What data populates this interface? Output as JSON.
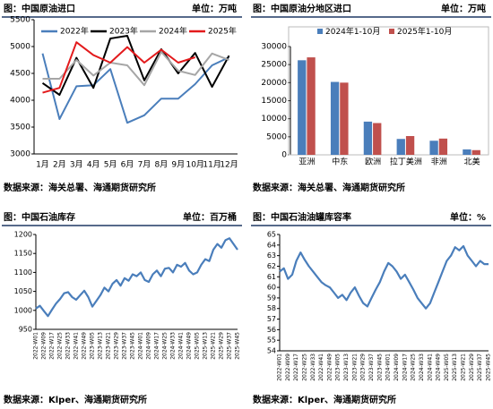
{
  "chart_data": [
    {
      "type": "line",
      "title": "图：中国原油进口",
      "unit": "单位：万吨",
      "source": "数据来源：海关总署、海通期货研究所",
      "categories": [
        "1月",
        "2月",
        "3月",
        "4月",
        "5月",
        "6月",
        "7月",
        "8月",
        "9月",
        "10月",
        "11月",
        "12月"
      ],
      "ylim": [
        3000,
        5500
      ],
      "yticks": [
        3000,
        3500,
        4000,
        4500,
        5000,
        5500
      ],
      "series": [
        {
          "name": "2022年",
          "color": "#4a7ebb",
          "values": [
            4870,
            3650,
            4260,
            4280,
            4580,
            3580,
            3720,
            4030,
            4030,
            4300,
            4650,
            4800
          ]
        },
        {
          "name": "2023年",
          "color": "#000000",
          "values": [
            4320,
            4100,
            4790,
            4230,
            5150,
            5200,
            4370,
            4950,
            4500,
            4880,
            4250,
            4830
          ]
        },
        {
          "name": "2024年",
          "color": "#a6a6a6",
          "values": [
            4400,
            4400,
            4750,
            4460,
            4700,
            4650,
            4280,
            4900,
            4550,
            4470,
            4870,
            4750
          ]
        },
        {
          "name": "2025年",
          "color": "#e31a1c",
          "values": [
            4140,
            4230,
            5080,
            4840,
            4700,
            4990,
            4700,
            4940,
            4700,
            4800,
            null,
            null
          ]
        }
      ]
    },
    {
      "type": "bar",
      "title": "图：中国原油分地区进口",
      "unit": "单位：万吨",
      "source": "数据来源：海关总署、海通期货研究所",
      "categories": [
        "亚洲",
        "中东",
        "欧洲",
        "拉丁美洲",
        "非洲",
        "北美"
      ],
      "ylim": [
        0,
        30000
      ],
      "yticks": [
        0,
        5000,
        10000,
        15000,
        20000,
        25000,
        30000
      ],
      "series": [
        {
          "name": "2024年1-10月",
          "color": "#4a7ebb",
          "values": [
            26200,
            20200,
            9200,
            4400,
            3900,
            1500
          ]
        },
        {
          "name": "2025年1-10月",
          "color": "#c0504d",
          "values": [
            27000,
            20000,
            8800,
            5200,
            4500,
            1300
          ]
        }
      ]
    },
    {
      "type": "line",
      "title": "图：中国石油库存",
      "unit": "单位：百万桶",
      "source": "数据来源：Klper、海通期货研究所",
      "categories": [
        "2022-W01",
        null,
        "2022-W09",
        null,
        "2022-W17",
        null,
        "2022-W25",
        null,
        "2022-W33",
        null,
        "2022-W41",
        null,
        "2022-W49",
        null,
        "2023-W05",
        null,
        "2023-W13",
        null,
        "2023-W21",
        null,
        "2023-W29",
        null,
        "2023-W37",
        null,
        "2023-W45",
        null,
        "2024-W01",
        null,
        "2024-W09",
        null,
        "2024-W17",
        null,
        "2024-W25",
        null,
        "2024-W33",
        null,
        "2024-W41",
        null,
        "2024-W49",
        null,
        "2025-W05",
        null,
        "2025-W13",
        null,
        "2025-W21",
        null,
        "2025-W29",
        null,
        "2025-W37",
        null,
        "2025-W45"
      ],
      "ylim": [
        950,
        1200
      ],
      "yticks": [
        950,
        1000,
        1050,
        1100,
        1150,
        1200
      ],
      "color": "#4a7ebb",
      "values": [
        1005,
        1012,
        998,
        985,
        1002,
        1018,
        1030,
        1045,
        1048,
        1035,
        1028,
        1040,
        1052,
        1035,
        1010,
        1025,
        1040,
        1060,
        1050,
        1070,
        1080,
        1065,
        1085,
        1078,
        1095,
        1090,
        1100,
        1080,
        1075,
        1095,
        1105,
        1090,
        1110,
        1112,
        1100,
        1120,
        1115,
        1125,
        1105,
        1095,
        1100,
        1120,
        1135,
        1130,
        1160,
        1175,
        1165,
        1185,
        1190,
        1175,
        1160
      ]
    },
    {
      "type": "line",
      "title": "图：中国石油油罐库容率",
      "unit": "单位：%",
      "source": "数据来源：Klper、海通期货研究所",
      "categories": [
        "2022-W01",
        null,
        "2022-W09",
        null,
        "2022-W17",
        null,
        "2022-W25",
        null,
        "2022-W33",
        null,
        "2022-W41",
        null,
        "2022-W49",
        null,
        "2023-W05",
        null,
        "2023-W13",
        null,
        "2023-W21",
        null,
        "2023-W29",
        null,
        "2023-W37",
        null,
        "2023-W45",
        null,
        "2024-W01",
        null,
        "2024-W09",
        null,
        "2024-W17",
        null,
        "2024-W25",
        null,
        "2024-W33",
        null,
        "2024-W41",
        null,
        "2024-W49",
        null,
        "2025-W05",
        null,
        "2025-W13",
        null,
        "2025-W21",
        null,
        "2025-W29",
        null,
        "2025-W37",
        null,
        "2025-W45"
      ],
      "ylim": [
        54,
        65
      ],
      "yticks": [
        54,
        55,
        56,
        57,
        58,
        59,
        60,
        61,
        62,
        63,
        64,
        65
      ],
      "color": "#4a7ebb",
      "values": [
        61.5,
        61.8,
        60.8,
        61.2,
        62.5,
        63.3,
        62.6,
        62.0,
        61.5,
        61.0,
        60.5,
        60.2,
        60.0,
        59.5,
        59.0,
        59.3,
        58.8,
        59.5,
        60.0,
        59.2,
        58.5,
        58.2,
        59.0,
        59.8,
        60.5,
        61.5,
        62.3,
        62.0,
        61.5,
        60.8,
        61.2,
        60.5,
        59.8,
        59.0,
        58.5,
        58.0,
        58.5,
        59.5,
        60.5,
        61.5,
        62.5,
        63.0,
        63.8,
        63.5,
        63.9,
        63.0,
        62.5,
        62.0,
        62.5,
        62.2,
        62.2
      ]
    }
  ]
}
